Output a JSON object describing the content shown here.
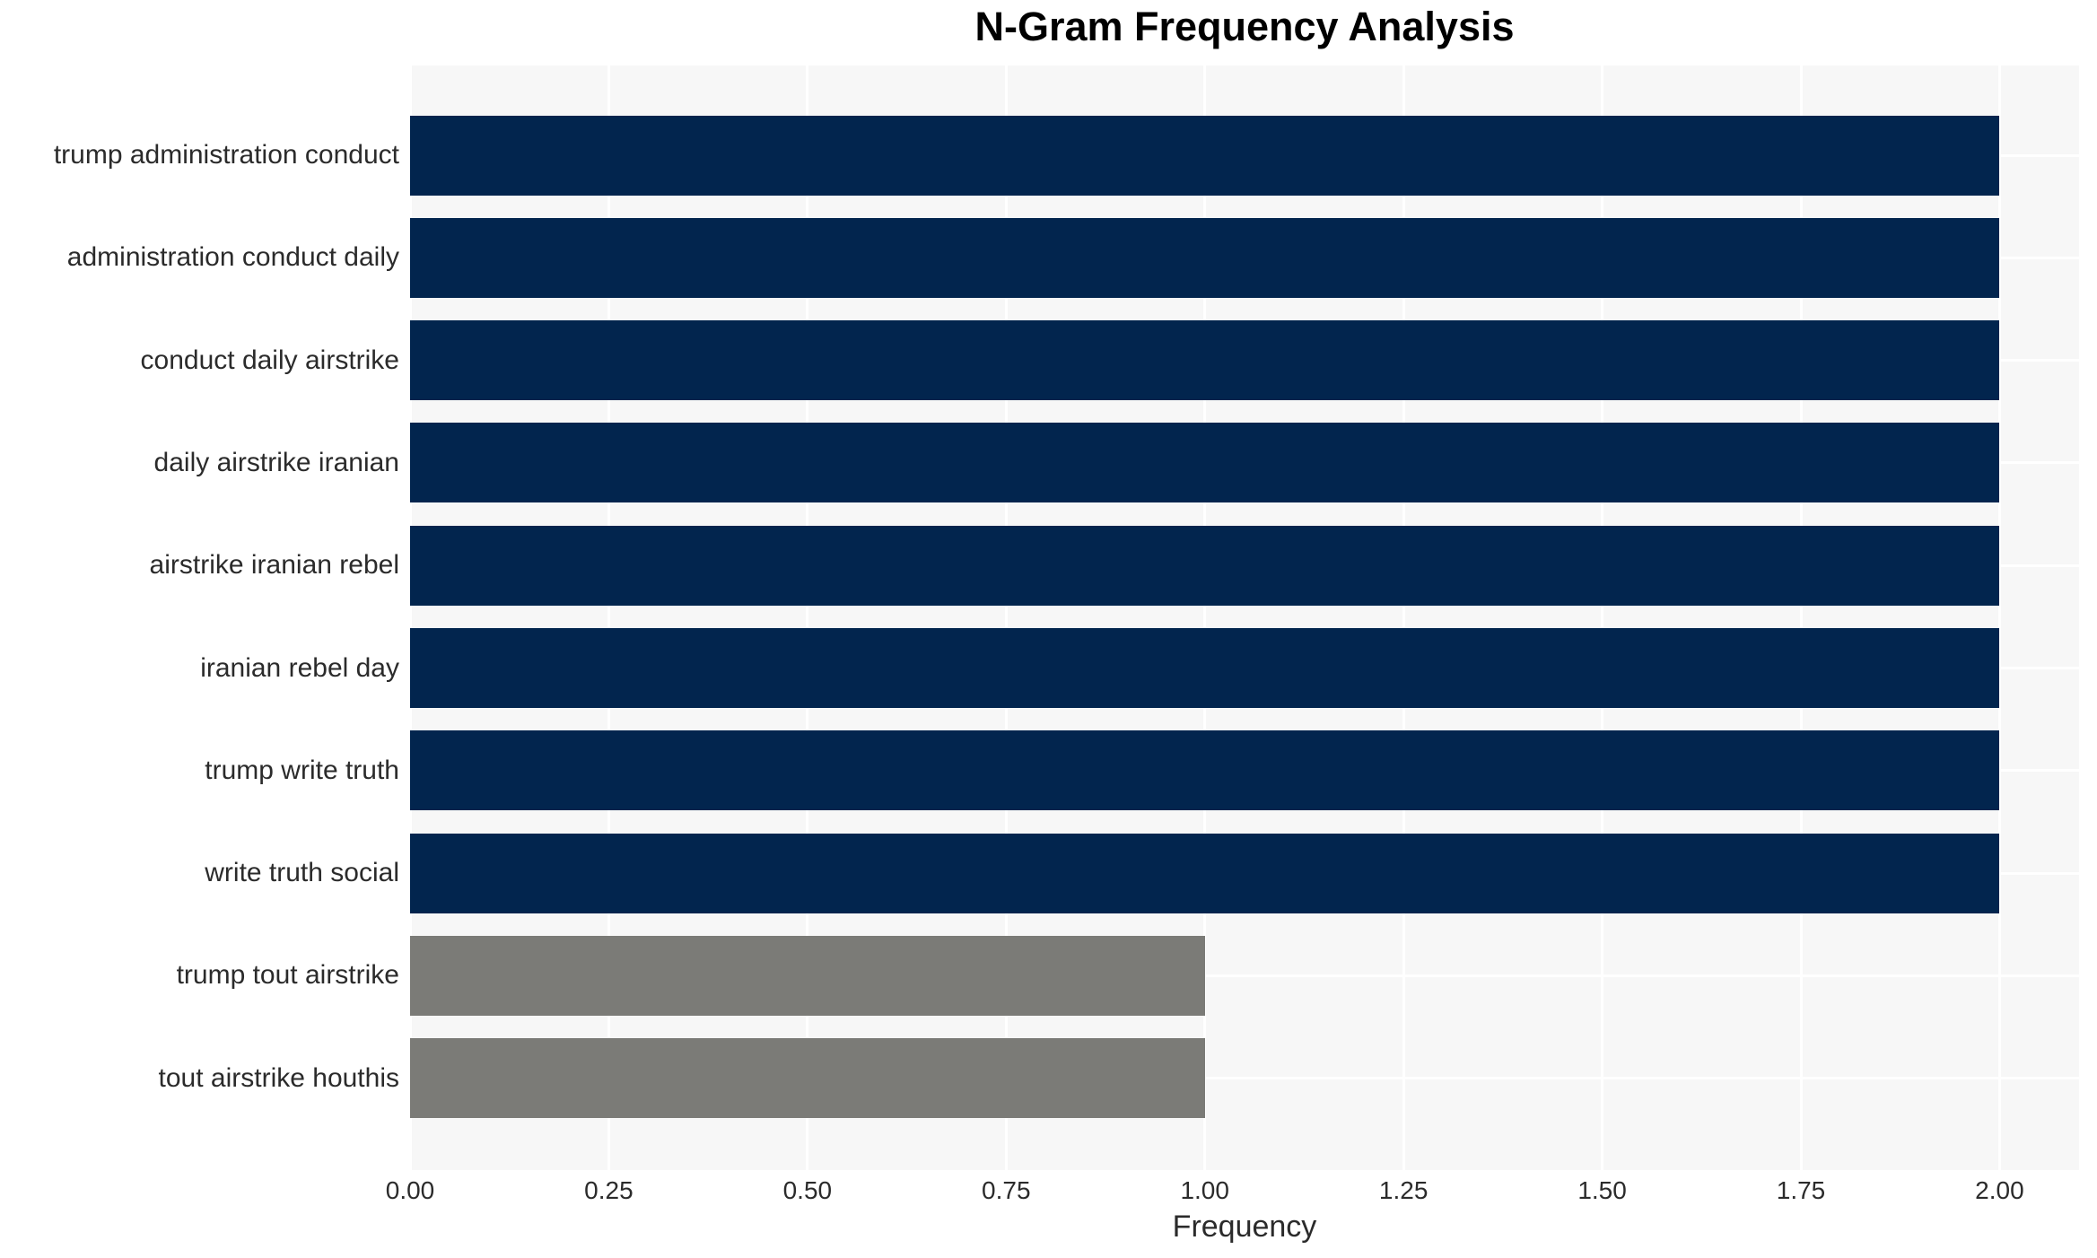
{
  "chart_data": {
    "type": "bar",
    "orientation": "horizontal",
    "title": "N-Gram Frequency Analysis",
    "xlabel": "Frequency",
    "ylabel": "",
    "categories": [
      "trump administration conduct",
      "administration conduct daily",
      "conduct daily airstrike",
      "daily airstrike iranian",
      "airstrike iranian rebel",
      "iranian rebel day",
      "trump write truth",
      "write truth social",
      "trump tout airstrike",
      "tout airstrike houthis"
    ],
    "values": [
      2,
      2,
      2,
      2,
      2,
      2,
      2,
      2,
      1,
      1
    ],
    "bar_colors": [
      "#02254e",
      "#02254e",
      "#02254e",
      "#02254e",
      "#02254e",
      "#02254e",
      "#02254e",
      "#02254e",
      "#7b7b77",
      "#7b7b77"
    ],
    "xlim": [
      0,
      2.1
    ],
    "xticks": {
      "values": [
        0,
        0.25,
        0.5,
        0.75,
        1.0,
        1.25,
        1.5,
        1.75,
        2.0
      ],
      "labels": [
        "0.00",
        "0.25",
        "0.50",
        "0.75",
        "1.00",
        "1.25",
        "1.50",
        "1.75",
        "2.00"
      ]
    },
    "grid": true,
    "legend_position": "none",
    "colors": {
      "bar_high": "#02254e",
      "bar_low": "#7b7b77",
      "plot_background": "#f7f7f7",
      "gridline": "#ffffff",
      "title_text": "#000000",
      "axis_text": "#2b2b2b"
    }
  }
}
